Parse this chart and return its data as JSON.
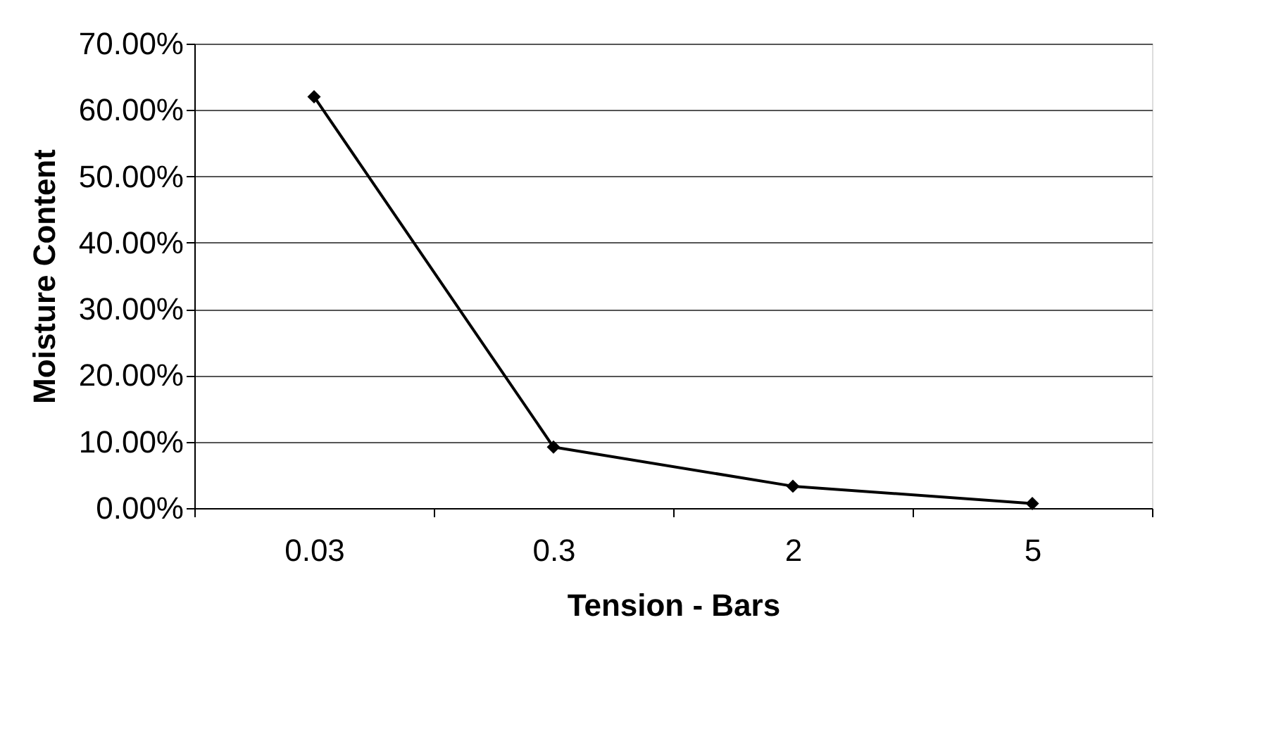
{
  "chart_data": {
    "type": "line",
    "xlabel": "Tension - Bars",
    "ylabel": "Moisture Content",
    "categories": [
      "0.03",
      "0.3",
      "2",
      "5"
    ],
    "series": [
      {
        "color": "#000000",
        "values": [
          62,
          9.2,
          3.3,
          0.7
        ]
      }
    ],
    "ylim": [
      0,
      70
    ],
    "yticks": [
      {
        "value": 0,
        "label": "0.00%"
      },
      {
        "value": 10,
        "label": "10.00%"
      },
      {
        "value": 20,
        "label": "20.00%"
      },
      {
        "value": 30,
        "label": "30.00%"
      },
      {
        "value": 40,
        "label": "40.00%"
      },
      {
        "value": 50,
        "label": "50.00%"
      },
      {
        "value": 60,
        "label": "60.00%"
      },
      {
        "value": 70,
        "label": "70.00%"
      }
    ],
    "grid": "y",
    "legend": false,
    "marker": "diamond",
    "line_style": "solid"
  }
}
